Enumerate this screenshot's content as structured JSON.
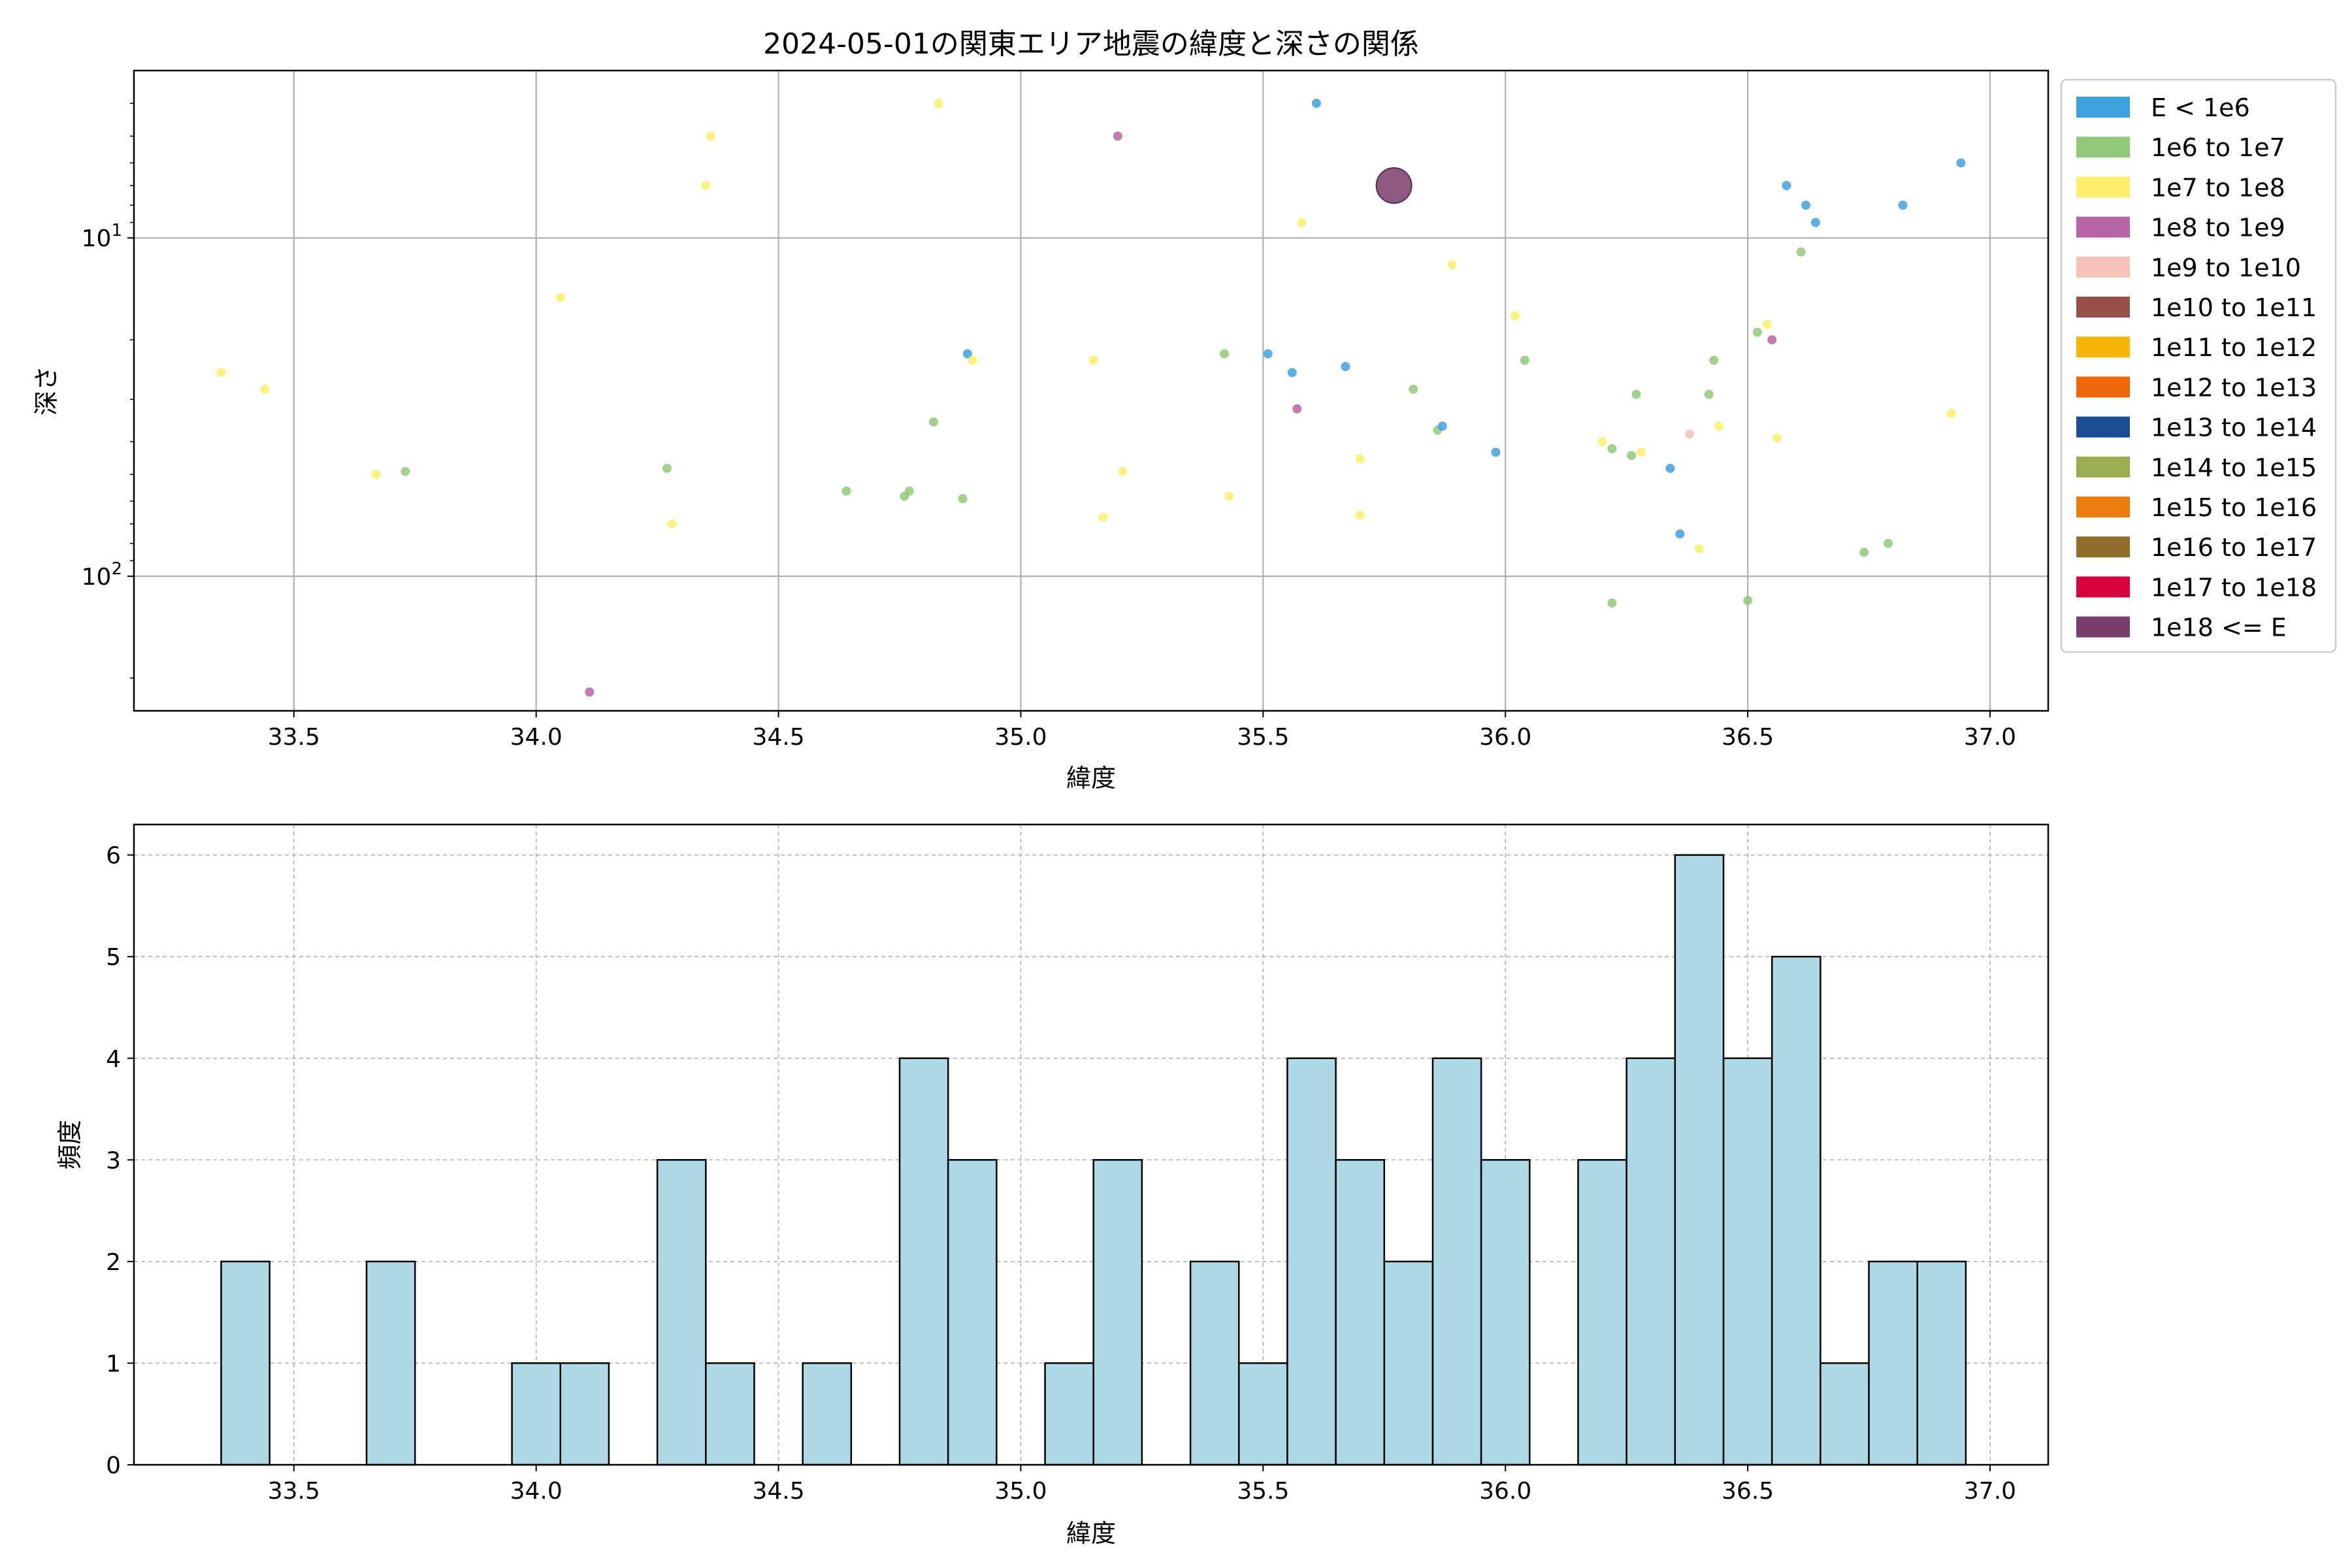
{
  "chart_data": [
    {
      "type": "scatter",
      "title": "2024-05-01の関東エリア地震の緯度と深さの関係",
      "xlabel": "緯度",
      "ylabel": "深さ",
      "xlim": [
        33.17,
        37.12
      ],
      "xticks": [
        "33.5",
        "34.0",
        "34.5",
        "35.0",
        "35.5",
        "36.0",
        "36.5",
        "37.0"
      ],
      "y_scale": "log",
      "y_inverted": true,
      "ylim": [
        3.2,
        250
      ],
      "yticks": [
        {
          "base": "10",
          "exp": "1",
          "value": 10
        },
        {
          "base": "10",
          "exp": "2",
          "value": 100
        }
      ],
      "grid": true,
      "legend_position": "outside-right",
      "legend": [
        {
          "label": "E < 1e6",
          "color": "#3ea1de"
        },
        {
          "label": "1e6 to 1e7",
          "color": "#90c978"
        },
        {
          "label": "1e7 to 1e8",
          "color": "#fdee6c"
        },
        {
          "label": "1e8 to 1e9",
          "color": "#b565a6"
        },
        {
          "label": "1e9 to 1e10",
          "color": "#f5c1b9"
        },
        {
          "label": "1e10 to 1e11",
          "color": "#975049"
        },
        {
          "label": "1e11 to 1e12",
          "color": "#f8b509"
        },
        {
          "label": "1e12 to 1e13",
          "color": "#ee6709"
        },
        {
          "label": "1e13 to 1e14",
          "color": "#1c4c93"
        },
        {
          "label": "1e14 to 1e15",
          "color": "#9bad50"
        },
        {
          "label": "1e15 to 1e16",
          "color": "#ec7e10"
        },
        {
          "label": "1e16 to 1e17",
          "color": "#906f2a"
        },
        {
          "label": "1e17 to 1e18",
          "color": "#d9033d"
        },
        {
          "label": "1e18 <= E",
          "color": "#793e6c"
        }
      ],
      "points": [
        {
          "x": 33.35,
          "y": 25,
          "c": 2
        },
        {
          "x": 33.44,
          "y": 28,
          "c": 2
        },
        {
          "x": 33.67,
          "y": 50,
          "c": 2
        },
        {
          "x": 33.73,
          "y": 49,
          "c": 1
        },
        {
          "x": 34.05,
          "y": 15,
          "c": 2
        },
        {
          "x": 34.11,
          "y": 220,
          "c": 3
        },
        {
          "x": 34.27,
          "y": 48,
          "c": 1
        },
        {
          "x": 34.28,
          "y": 70,
          "c": 2
        },
        {
          "x": 34.35,
          "y": 7,
          "c": 2
        },
        {
          "x": 34.36,
          "y": 5,
          "c": 2
        },
        {
          "x": 34.64,
          "y": 56,
          "c": 1
        },
        {
          "x": 34.76,
          "y": 58,
          "c": 1
        },
        {
          "x": 34.77,
          "y": 56,
          "c": 1
        },
        {
          "x": 34.82,
          "y": 35,
          "c": 1
        },
        {
          "x": 34.83,
          "y": 4,
          "c": 2
        },
        {
          "x": 34.88,
          "y": 59,
          "c": 1
        },
        {
          "x": 34.89,
          "y": 22,
          "c": 0
        },
        {
          "x": 34.9,
          "y": 23,
          "c": 2
        },
        {
          "x": 35.15,
          "y": 23,
          "c": 2
        },
        {
          "x": 35.17,
          "y": 67,
          "c": 2
        },
        {
          "x": 35.2,
          "y": 5,
          "c": 3
        },
        {
          "x": 35.21,
          "y": 49,
          "c": 2
        },
        {
          "x": 35.42,
          "y": 22,
          "c": 1
        },
        {
          "x": 35.43,
          "y": 58,
          "c": 2
        },
        {
          "x": 35.51,
          "y": 22,
          "c": 0
        },
        {
          "x": 35.56,
          "y": 25,
          "c": 0
        },
        {
          "x": 35.57,
          "y": 32,
          "c": 3
        },
        {
          "x": 35.58,
          "y": 9,
          "c": 2
        },
        {
          "x": 35.61,
          "y": 4,
          "c": 0
        },
        {
          "x": 35.67,
          "y": 24,
          "c": 0
        },
        {
          "x": 35.7,
          "y": 45,
          "c": 2
        },
        {
          "x": 35.7,
          "y": 66,
          "c": 2
        },
        {
          "x": 35.77,
          "y": 7,
          "c": 13,
          "big": true
        },
        {
          "x": 35.81,
          "y": 28,
          "c": 1
        },
        {
          "x": 35.86,
          "y": 37,
          "c": 1
        },
        {
          "x": 35.87,
          "y": 36,
          "c": 0
        },
        {
          "x": 35.89,
          "y": 12,
          "c": 2
        },
        {
          "x": 35.98,
          "y": 43,
          "c": 0
        },
        {
          "x": 36.02,
          "y": 17,
          "c": 2
        },
        {
          "x": 36.04,
          "y": 23,
          "c": 1
        },
        {
          "x": 36.2,
          "y": 40,
          "c": 2
        },
        {
          "x": 36.22,
          "y": 42,
          "c": 1
        },
        {
          "x": 36.22,
          "y": 120,
          "c": 1
        },
        {
          "x": 36.26,
          "y": 44,
          "c": 1
        },
        {
          "x": 36.27,
          "y": 29,
          "c": 1
        },
        {
          "x": 36.28,
          "y": 43,
          "c": 2
        },
        {
          "x": 36.34,
          "y": 48,
          "c": 0
        },
        {
          "x": 36.36,
          "y": 75,
          "c": 0
        },
        {
          "x": 36.38,
          "y": 38,
          "c": 4
        },
        {
          "x": 36.4,
          "y": 83,
          "c": 2
        },
        {
          "x": 36.42,
          "y": 29,
          "c": 1
        },
        {
          "x": 36.43,
          "y": 23,
          "c": 1
        },
        {
          "x": 36.44,
          "y": 36,
          "c": 2
        },
        {
          "x": 36.5,
          "y": 118,
          "c": 1
        },
        {
          "x": 36.52,
          "y": 19,
          "c": 1
        },
        {
          "x": 36.54,
          "y": 18,
          "c": 2
        },
        {
          "x": 36.55,
          "y": 20,
          "c": 3
        },
        {
          "x": 36.56,
          "y": 39,
          "c": 2
        },
        {
          "x": 36.58,
          "y": 7,
          "c": 0
        },
        {
          "x": 36.61,
          "y": 11,
          "c": 1
        },
        {
          "x": 36.62,
          "y": 8,
          "c": 0
        },
        {
          "x": 36.64,
          "y": 9,
          "c": 0
        },
        {
          "x": 36.74,
          "y": 85,
          "c": 1
        },
        {
          "x": 36.79,
          "y": 80,
          "c": 1
        },
        {
          "x": 36.82,
          "y": 8,
          "c": 0
        },
        {
          "x": 36.92,
          "y": 33,
          "c": 2
        },
        {
          "x": 36.94,
          "y": 6,
          "c": 0
        }
      ]
    },
    {
      "type": "bar",
      "title": "",
      "xlabel": "緯度",
      "ylabel": "頻度",
      "xlim": [
        33.17,
        37.12
      ],
      "ylim": [
        0,
        6.3
      ],
      "xticks": [
        "33.5",
        "34.0",
        "34.5",
        "35.0",
        "35.5",
        "36.0",
        "36.5",
        "37.0"
      ],
      "yticks": [
        "0",
        "1",
        "2",
        "3",
        "4",
        "5",
        "6"
      ],
      "grid": true,
      "bar_color": "#add8e6",
      "edge_color": "#000000",
      "bin_width": 0.1,
      "bins": [
        {
          "x0": 33.35,
          "count": 2
        },
        {
          "x0": 33.65,
          "count": 2
        },
        {
          "x0": 33.95,
          "count": 1
        },
        {
          "x0": 34.05,
          "count": 1
        },
        {
          "x0": 34.25,
          "count": 3
        },
        {
          "x0": 34.35,
          "count": 1
        },
        {
          "x0": 34.55,
          "count": 1
        },
        {
          "x0": 34.75,
          "count": 4
        },
        {
          "x0": 34.85,
          "count": 3
        },
        {
          "x0": 35.05,
          "count": 1
        },
        {
          "x0": 35.15,
          "count": 3
        },
        {
          "x0": 35.35,
          "count": 2
        },
        {
          "x0": 35.45,
          "count": 1
        },
        {
          "x0": 35.55,
          "count": 4
        },
        {
          "x0": 35.65,
          "count": 3
        },
        {
          "x0": 35.75,
          "count": 2
        },
        {
          "x0": 35.85,
          "count": 4
        },
        {
          "x0": 35.95,
          "count": 3
        },
        {
          "x0": 36.15,
          "count": 3
        },
        {
          "x0": 36.25,
          "count": 4
        },
        {
          "x0": 36.35,
          "count": 6
        },
        {
          "x0": 36.45,
          "count": 4
        },
        {
          "x0": 36.55,
          "count": 5
        },
        {
          "x0": 36.65,
          "count": 1
        },
        {
          "x0": 36.75,
          "count": 2
        },
        {
          "x0": 36.85,
          "count": 2
        }
      ]
    }
  ]
}
